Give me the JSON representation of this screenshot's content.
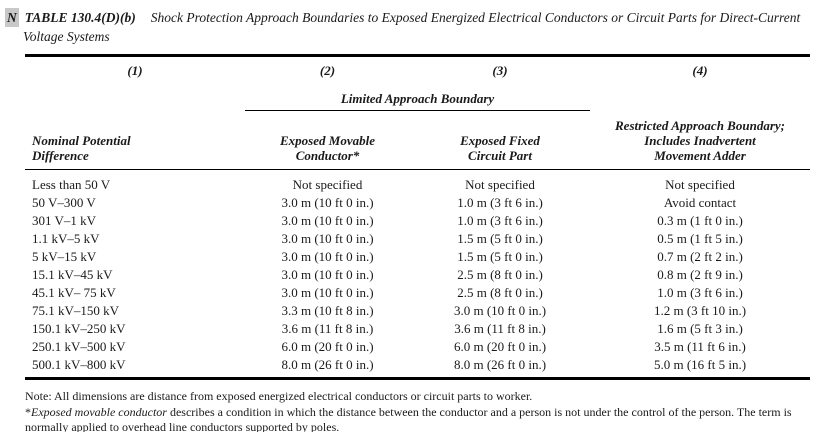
{
  "title": {
    "tag": "N",
    "table_label": "TABLE 130.4(D)(b)",
    "text": "Shock Protection Approach Boundaries to Exposed Energized Electrical Conductors or Circuit Parts for Direct-Current Voltage Systems"
  },
  "table": {
    "col_numbers": [
      "(1)",
      "(2)",
      "(3)",
      "(4)"
    ],
    "group_header": "Limited Approach Boundary",
    "headers": {
      "col1": [
        "Nominal Potential",
        "Difference"
      ],
      "col2": [
        "Exposed Movable",
        "Conductor*"
      ],
      "col3": [
        "Exposed Fixed",
        "Circuit Part"
      ],
      "col4": [
        "Restricted Approach Boundary;",
        "Includes Inadvertent",
        "Movement Adder"
      ]
    },
    "rows": [
      [
        "Less than 50 V",
        "Not specified",
        "Not specified",
        "Not specified"
      ],
      [
        "50 V–300 V",
        "3.0 m (10 ft 0 in.)",
        "1.0 m (3 ft 6 in.)",
        "Avoid contact"
      ],
      [
        "301 V–1 kV",
        "3.0 m (10 ft 0 in.)",
        "1.0 m (3 ft 6 in.)",
        "0.3 m (1 ft 0 in.)"
      ],
      [
        "1.1 kV–5 kV",
        "3.0 m (10 ft 0 in.)",
        "1.5 m (5 ft 0 in.)",
        "0.5 m (1 ft 5 in.)"
      ],
      [
        "5 kV–15 kV",
        "3.0 m (10 ft 0 in.)",
        "1.5 m (5 ft 0 in.)",
        "0.7 m (2 ft 2 in.)"
      ],
      [
        "15.1 kV–45 kV",
        "3.0 m (10 ft 0 in.)",
        "2.5 m (8 ft 0 in.)",
        "0.8 m (2 ft 9 in.)"
      ],
      [
        "45.1 kV– 75 kV",
        "3.0 m (10 ft 0 in.)",
        "2.5 m (8 ft 0 in.)",
        "1.0 m (3 ft 6 in.)"
      ],
      [
        "75.1 kV–150 kV",
        "3.3 m (10 ft 8 in.)",
        "3.0 m (10 ft 0 in.)",
        "1.2 m (3 ft 10 in.)"
      ],
      [
        "150.1 kV–250 kV",
        "3.6 m (11 ft 8 in.)",
        "3.6 m (11 ft 8 in.)",
        "1.6 m (5 ft 3 in.)"
      ],
      [
        "250.1 kV–500 kV",
        "6.0 m (20 ft 0 in.)",
        "6.0 m (20 ft 0 in.)",
        "3.5 m (11 ft 6 in.)"
      ],
      [
        "500.1 kV–800 kV",
        "8.0 m (26 ft 0 in.)",
        "8.0 m (26 ft 0 in.)",
        "5.0 m (16 ft 5 in.)"
      ]
    ]
  },
  "notes": {
    "note": "Note: All dimensions are distance from exposed energized electrical conductors or circuit parts to worker.",
    "footnote_marker": "*",
    "footnote_term": "Exposed movable conductor",
    "footnote_rest": " describes a condition in which the distance between the conductor and a person is not under the control of the person. The term is normally applied to overhead line conductors supported by poles."
  },
  "colors": {
    "tag_background": "#c8c8c8",
    "rule": "#000000",
    "text": "#1a1a1a"
  }
}
